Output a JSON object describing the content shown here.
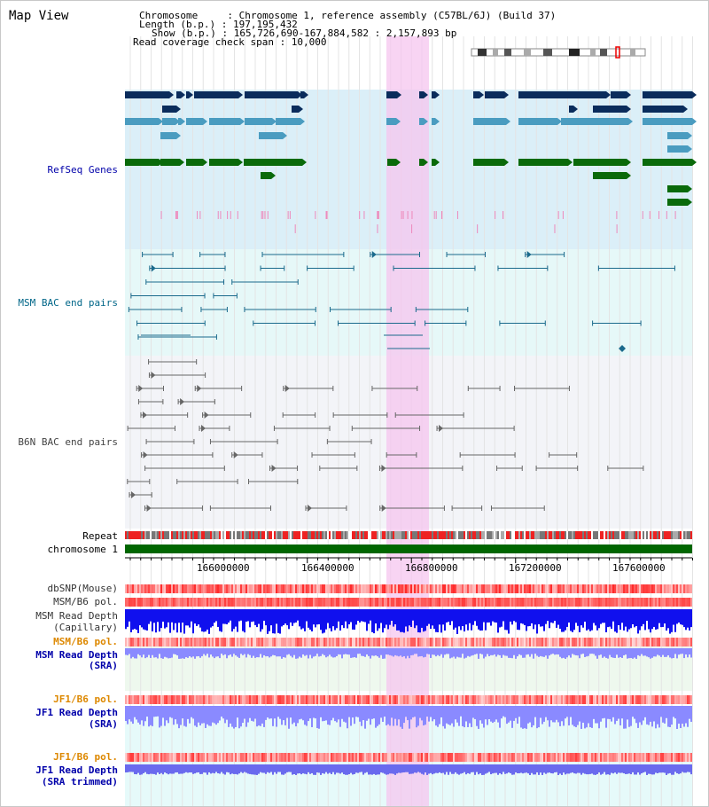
{
  "header": {
    "title": "Map View",
    "line1": "Chromosome     : Chromosome 1, reference assembly (C57BL/6J) (Build 37)",
    "line2": "Length (b.p.) : 197,195,432",
    "line3": "Show (b.p.) : 165,726,690-167,884,582 : 2,157,893 bp",
    "line4": "Read coverage check span : 10,000"
  },
  "tracks": {
    "refseq": "RefSeq Genes",
    "msm_bac": "MSM BAC end pairs",
    "b6n_bac": "B6N BAC end pairs",
    "repeat": "Repeat",
    "chromosome": "chromosome 1",
    "dbsnp": "dbSNP(Mouse)",
    "msm_b6_pol": "MSM/B6 pol.",
    "msm_read_depth_cap_1": "MSM Read Depth",
    "msm_read_depth_cap_2": "(Capillary)",
    "msm_b6_pol_2": "MSM/B6 pol.",
    "msm_read_depth_sra_1": "MSM Read Depth",
    "msm_read_depth_sra_2": "(SRA)",
    "jf1_b6_pol": "JF1/B6 pol.",
    "jf1_read_depth_sra_1": "JF1 Read Depth",
    "jf1_read_depth_sra_2": "(SRA)",
    "jf1_b6_pol_2": "JF1/B6 pol.",
    "jf1_read_depth_trim_1": "JF1 Read Depth",
    "jf1_read_depth_trim_2": "(SRA trimmed)"
  },
  "axis": {
    "tick_labels": [
      "166000000",
      "166400000",
      "166800000",
      "167200000",
      "167600000"
    ]
  },
  "colors": {
    "refseq_label": "#0000aa",
    "msm_label": "#006688",
    "b6n_label": "#444444",
    "orange_label": "#dd8800",
    "blue_label": "#0000aa",
    "highlight": "#f6c6ef",
    "refseq_bg": "#dbeff8",
    "msm_bg": "#e6f8f8",
    "b6n_bg": "#f3f4f8",
    "gene_dark": "#0a2c5c",
    "gene_mid": "#4a9cc0",
    "gene_green": "#0a6a0a",
    "depth_blue": "#1010ee",
    "depth_light": "#8a8aff"
  }
}
